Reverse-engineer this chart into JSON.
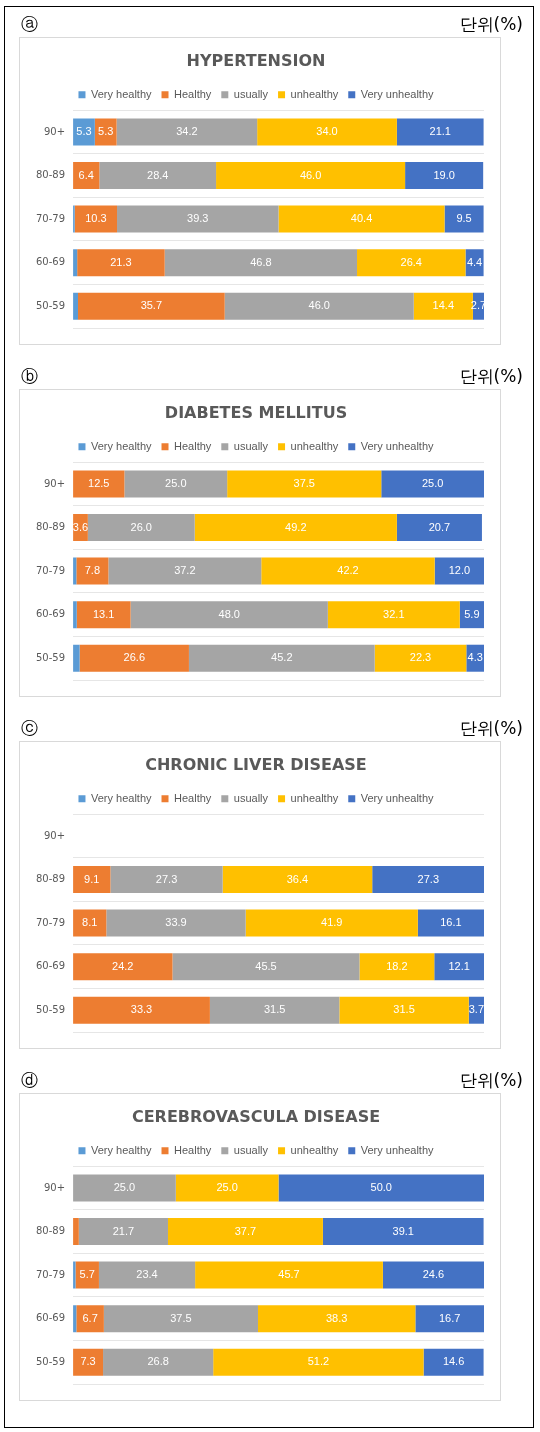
{
  "chart_data": [
    {
      "type": "bar",
      "orientation": "horizontal",
      "stacked": true,
      "title": "HYPERTENSION",
      "annotations": [
        "ⓐ",
        "단위(%)"
      ],
      "categories": [
        "90+",
        "80-89",
        "70-79",
        "60-69",
        "50-59"
      ],
      "xlim": [
        0,
        100
      ],
      "tick_labels": "y",
      "grid": "y",
      "legend": "top",
      "series": [
        {
          "name": "Very healthy",
          "color": "#5b9bd5",
          "values": [
            5.3,
            null,
            0.4,
            1.0,
            1.2
          ],
          "value_labels": [
            "5.3",
            null,
            null,
            null,
            null
          ]
        },
        {
          "name": "Healthy",
          "color": "#ed7d31",
          "values": [
            5.3,
            6.4,
            10.3,
            21.3,
            35.7
          ],
          "value_labels": [
            "5.3",
            "6.4",
            "10.3",
            "21.3",
            "35.7"
          ]
        },
        {
          "name": "usually",
          "color": "#a5a5a5",
          "values": [
            34.2,
            28.4,
            39.3,
            46.8,
            46.0
          ],
          "value_labels": [
            "34.2",
            "28.4",
            "39.3",
            "46.8",
            "46.0"
          ]
        },
        {
          "name": "unhealthy",
          "color": "#ffc000",
          "values": [
            34.0,
            46.0,
            40.4,
            26.4,
            14.4
          ],
          "value_labels": [
            "34.0",
            "46.0",
            "40.4",
            "26.4",
            "14.4"
          ]
        },
        {
          "name": "Very unhealthy",
          "color": "#4472c4",
          "values": [
            21.1,
            19.0,
            9.5,
            4.4,
            2.7
          ],
          "value_labels": [
            "21.1",
            "19.0",
            "9.5",
            "4.4",
            "2.7"
          ]
        }
      ]
    },
    {
      "type": "bar",
      "orientation": "horizontal",
      "stacked": true,
      "title": "DIABETES MELLITUS",
      "annotations": [
        "ⓑ",
        "단위(%)"
      ],
      "categories": [
        "90+",
        "80-89",
        "70-79",
        "60-69",
        "50-59"
      ],
      "xlim": [
        0,
        100
      ],
      "tick_labels": "y",
      "grid": "y",
      "legend": "top",
      "series": [
        {
          "name": "Very healthy",
          "color": "#5b9bd5",
          "values": [
            0,
            null,
            0.8,
            0.9,
            1.6
          ],
          "value_labels": [
            null,
            null,
            null,
            null,
            null
          ]
        },
        {
          "name": "Healthy",
          "color": "#ed7d31",
          "values": [
            12.5,
            3.6,
            7.8,
            13.1,
            26.6
          ],
          "value_labels": [
            "12.5",
            "3.6",
            "7.8",
            "13.1",
            "26.6"
          ]
        },
        {
          "name": "usually",
          "color": "#a5a5a5",
          "values": [
            25.0,
            26.0,
            37.2,
            48.0,
            45.2
          ],
          "value_labels": [
            "25.0",
            "26.0",
            "37.2",
            "48.0",
            "45.2"
          ]
        },
        {
          "name": "unhealthy",
          "color": "#ffc000",
          "values": [
            37.5,
            49.2,
            42.2,
            32.1,
            22.3
          ],
          "value_labels": [
            "37.5",
            "49.2",
            "42.2",
            "32.1",
            "22.3"
          ]
        },
        {
          "name": "Very unhealthy",
          "color": "#4472c4",
          "values": [
            25.0,
            20.7,
            12.0,
            5.9,
            4.3
          ],
          "value_labels": [
            "25.0",
            "20.7",
            "12.0",
            "5.9",
            "4.3"
          ]
        }
      ]
    },
    {
      "type": "bar",
      "orientation": "horizontal",
      "stacked": true,
      "title": "CHRONIC LIVER DISEASE",
      "annotations": [
        "ⓒ",
        "단위(%)"
      ],
      "categories": [
        "90+",
        "80-89",
        "70-79",
        "60-69",
        "50-59"
      ],
      "xlim": [
        0,
        100
      ],
      "tick_labels": "y",
      "grid": "y",
      "legend": "top",
      "series": [
        {
          "name": "Very healthy",
          "color": "#5b9bd5",
          "values": [
            null,
            0,
            0,
            0,
            0
          ],
          "value_labels": [
            null,
            null,
            null,
            null,
            null
          ]
        },
        {
          "name": "Healthy",
          "color": "#ed7d31",
          "values": [
            null,
            9.1,
            8.1,
            24.2,
            33.3
          ],
          "value_labels": [
            null,
            "9.1",
            "8.1",
            "24.2",
            "33.3"
          ]
        },
        {
          "name": "usually",
          "color": "#a5a5a5",
          "values": [
            null,
            27.3,
            33.9,
            45.5,
            31.5
          ],
          "value_labels": [
            null,
            "27.3",
            "33.9",
            "45.5",
            "31.5"
          ]
        },
        {
          "name": "unhealthy",
          "color": "#ffc000",
          "values": [
            null,
            36.4,
            41.9,
            18.2,
            31.5
          ],
          "value_labels": [
            null,
            "36.4",
            "41.9",
            "18.2",
            "31.5"
          ]
        },
        {
          "name": "Very unhealthy",
          "color": "#4472c4",
          "values": [
            null,
            27.3,
            16.1,
            12.1,
            3.7
          ],
          "value_labels": [
            null,
            "27.3",
            "16.1",
            "12.1",
            "3.7"
          ]
        }
      ]
    },
    {
      "type": "bar",
      "orientation": "horizontal",
      "stacked": true,
      "title": "CEREBROVASCULA DISEASE",
      "annotations": [
        "ⓓ",
        "단위(%)"
      ],
      "categories": [
        "90+",
        "80-89",
        "70-79",
        "60-69",
        "50-59"
      ],
      "xlim": [
        0,
        100
      ],
      "tick_labels": "y",
      "grid": "y",
      "legend": "top",
      "series": [
        {
          "name": "Very healthy",
          "color": "#5b9bd5",
          "values": [
            0,
            0,
            0.6,
            0.8,
            0
          ],
          "value_labels": [
            null,
            null,
            null,
            null,
            null
          ]
        },
        {
          "name": "Healthy",
          "color": "#ed7d31",
          "values": [
            0,
            1.4,
            5.7,
            6.7,
            7.3
          ],
          "value_labels": [
            null,
            null,
            "5.7",
            "6.7",
            "7.3"
          ]
        },
        {
          "name": "usually",
          "color": "#a5a5a5",
          "values": [
            25.0,
            21.7,
            23.4,
            37.5,
            26.8
          ],
          "value_labels": [
            "25.0",
            "21.7",
            "23.4",
            "37.5",
            "26.8"
          ]
        },
        {
          "name": "unhealthy",
          "color": "#ffc000",
          "values": [
            25.0,
            37.7,
            45.7,
            38.3,
            51.2
          ],
          "value_labels": [
            "25.0",
            "37.7",
            "45.7",
            "38.3",
            "51.2"
          ]
        },
        {
          "name": "Very unhealthy",
          "color": "#4472c4",
          "values": [
            50.0,
            39.1,
            24.6,
            16.7,
            14.6
          ],
          "value_labels": [
            "50.0",
            "39.1",
            "24.6",
            "16.7",
            "14.6"
          ]
        }
      ]
    }
  ]
}
